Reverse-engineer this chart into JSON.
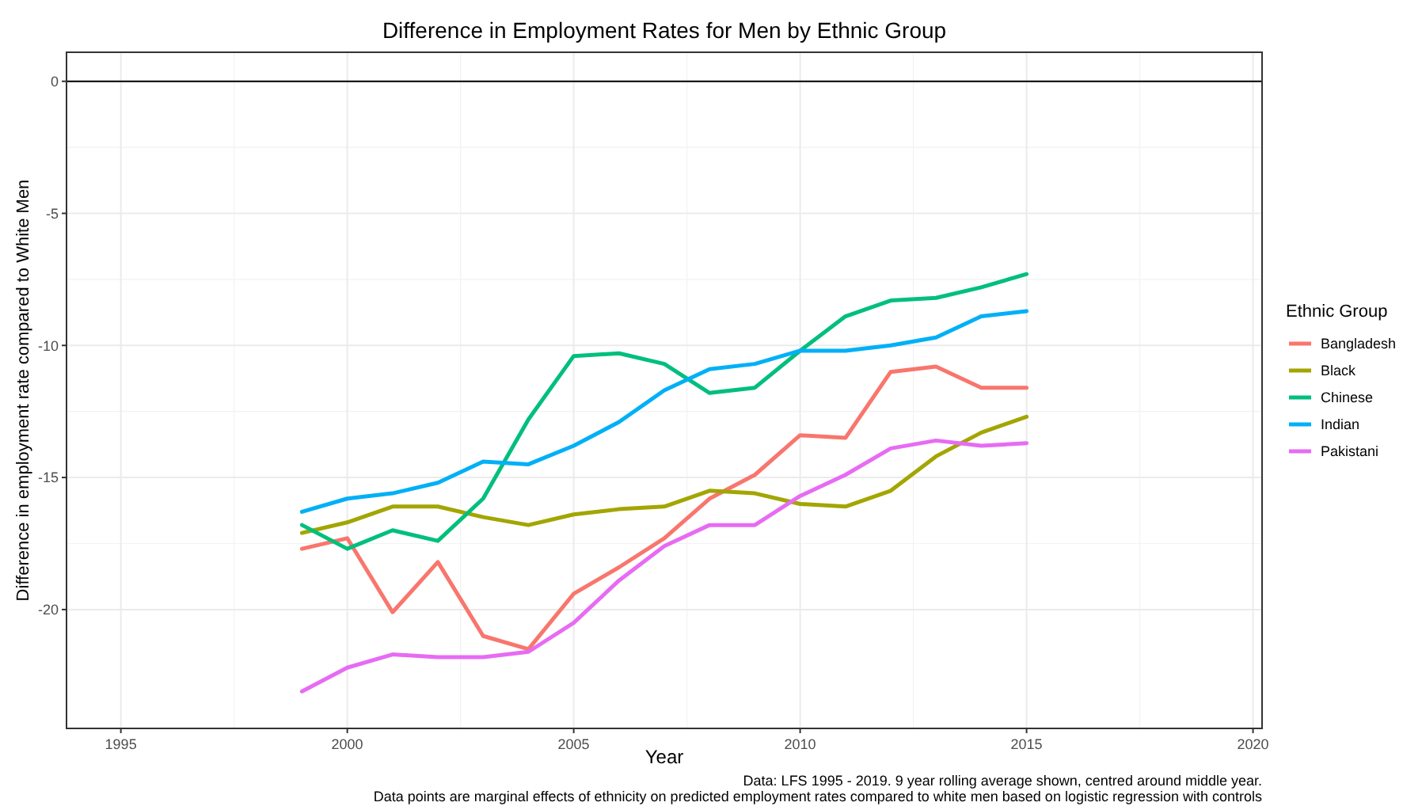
{
  "chart_data": {
    "type": "line",
    "title": "Difference in Employment Rates for Men by Ethnic Group",
    "xlabel": "Year",
    "ylabel": "Difference in employment rate compared to White Men",
    "legend_title": "Ethnic Group",
    "legend": "right",
    "grid": true,
    "marker": "none",
    "line_style": "solid",
    "x": [
      1999,
      2000,
      2001,
      2002,
      2003,
      2004,
      2005,
      2006,
      2007,
      2008,
      2009,
      2010,
      2011,
      2012,
      2013,
      2014,
      2015
    ],
    "xlim": [
      1993.8,
      2020.2
    ],
    "xticks": [
      1995,
      2000,
      2005,
      2010,
      2015,
      2020
    ],
    "ylim": [
      -24.5,
      1.1
    ],
    "yticks": [
      -20,
      -15,
      -10,
      -5,
      0
    ],
    "series": [
      {
        "name": "Bangladesh",
        "color": "#f8766d",
        "values": [
          -17.7,
          -17.3,
          -20.1,
          -18.2,
          -21.0,
          -21.5,
          -19.4,
          -18.4,
          -17.3,
          -15.8,
          -14.9,
          -13.4,
          -13.5,
          -11.0,
          -10.8,
          -11.6,
          -11.6
        ]
      },
      {
        "name": "Black",
        "color": "#a3a500",
        "values": [
          -17.1,
          -16.7,
          -16.1,
          -16.1,
          -16.5,
          -16.8,
          -16.4,
          -16.2,
          -16.1,
          -15.5,
          -15.6,
          -16.0,
          -16.1,
          -15.5,
          -14.2,
          -13.3,
          -12.7
        ]
      },
      {
        "name": "Chinese",
        "color": "#00bf7d",
        "values": [
          -16.8,
          -17.7,
          -17.0,
          -17.4,
          -15.8,
          -12.8,
          -10.4,
          -10.3,
          -10.7,
          -11.8,
          -11.6,
          -10.2,
          -8.9,
          -8.3,
          -8.2,
          -7.8,
          -7.3
        ]
      },
      {
        "name": "Indian",
        "color": "#00b0f6",
        "values": [
          -16.3,
          -15.8,
          -15.6,
          -15.2,
          -14.4,
          -14.5,
          -13.8,
          -12.9,
          -11.7,
          -10.9,
          -10.7,
          -10.2,
          -10.2,
          -10.0,
          -9.7,
          -8.9,
          -8.7
        ]
      },
      {
        "name": "Pakistani",
        "color": "#e76bf3",
        "values": [
          -23.1,
          -22.2,
          -21.7,
          -21.8,
          -21.8,
          -21.6,
          -20.5,
          -18.9,
          -17.6,
          -16.8,
          -16.8,
          -15.7,
          -14.9,
          -13.9,
          -13.6,
          -13.8,
          -13.7
        ]
      }
    ],
    "ref_lines": [
      {
        "axis": "y",
        "value": 0,
        "color": "#000000"
      }
    ],
    "annotations": [
      "Data: LFS 1995 - 2019. 9 year rolling average shown, centred around middle year.",
      "Data points are marginal effects of ethnicity on predicted employment rates compared to white men based on logistic regression with controls"
    ]
  }
}
